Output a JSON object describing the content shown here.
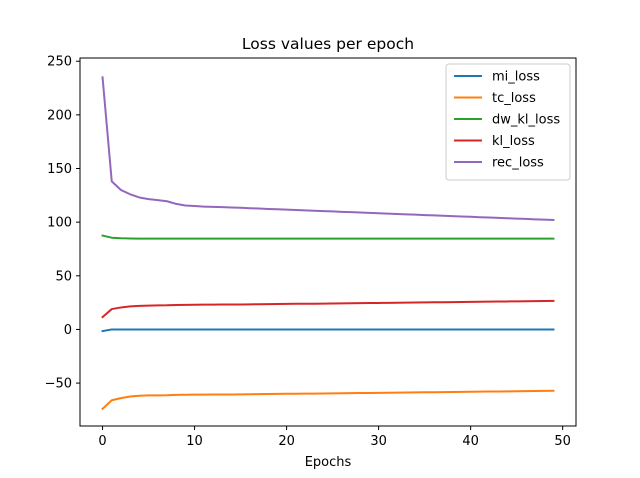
{
  "chart_data": {
    "type": "line",
    "title": "Loss values per epoch",
    "xlabel": "Epochs",
    "ylabel": "",
    "xlim": [
      -2.45,
      51.45
    ],
    "ylim": [
      -90,
      253
    ],
    "xticks": [
      0,
      10,
      20,
      30,
      40,
      50
    ],
    "yticks": [
      -50,
      0,
      50,
      100,
      150,
      200,
      250
    ],
    "ytick_labels": [
      "−50",
      "0",
      "50",
      "100",
      "150",
      "200",
      "250"
    ],
    "grid": false,
    "legend_position": "top-right",
    "x": [
      0,
      1,
      2,
      3,
      4,
      5,
      6,
      7,
      8,
      9,
      10,
      11,
      12,
      13,
      14,
      15,
      16,
      17,
      18,
      19,
      20,
      21,
      22,
      23,
      24,
      25,
      26,
      27,
      28,
      29,
      30,
      31,
      32,
      33,
      34,
      35,
      36,
      37,
      38,
      39,
      40,
      41,
      42,
      43,
      44,
      45,
      46,
      47,
      48,
      49
    ],
    "series": [
      {
        "name": "mi_loss",
        "color": "#1f77b4",
        "values": [
          -1.5,
          0,
          0,
          0,
          0,
          0,
          0,
          0,
          0,
          0,
          0,
          0,
          0,
          0,
          0,
          0,
          0,
          0,
          0,
          0,
          0,
          0,
          0,
          0,
          0,
          0,
          0,
          0,
          0,
          0,
          0,
          0,
          0,
          0,
          0,
          0,
          0,
          0,
          0,
          0,
          0,
          0,
          0,
          0,
          0,
          0,
          0,
          0,
          0,
          0
        ]
      },
      {
        "name": "tc_loss",
        "color": "#ff7f0e",
        "values": [
          -74,
          -66,
          -64,
          -62.5,
          -61.8,
          -61.5,
          -61.4,
          -61.3,
          -61,
          -60.9,
          -60.8,
          -60.8,
          -60.7,
          -60.6,
          -60.6,
          -60.5,
          -60.4,
          -60.3,
          -60.2,
          -60.1,
          -60,
          -59.9,
          -59.8,
          -59.8,
          -59.7,
          -59.6,
          -59.5,
          -59.4,
          -59.3,
          -59.2,
          -59.1,
          -59,
          -58.9,
          -58.8,
          -58.7,
          -58.6,
          -58.5,
          -58.4,
          -58.3,
          -58.2,
          -58.1,
          -58,
          -57.9,
          -57.8,
          -57.7,
          -57.6,
          -57.5,
          -57.4,
          -57.3,
          -57.2
        ]
      },
      {
        "name": "dw_kl_loss",
        "color": "#2ca02c",
        "values": [
          87.5,
          85.5,
          85,
          84.8,
          84.7,
          84.6,
          84.6,
          84.6,
          84.6,
          84.6,
          84.6,
          84.6,
          84.6,
          84.6,
          84.6,
          84.6,
          84.6,
          84.6,
          84.6,
          84.6,
          84.6,
          84.6,
          84.6,
          84.6,
          84.6,
          84.6,
          84.6,
          84.6,
          84.6,
          84.6,
          84.6,
          84.6,
          84.6,
          84.6,
          84.6,
          84.6,
          84.6,
          84.6,
          84.6,
          84.6,
          84.6,
          84.6,
          84.6,
          84.6,
          84.6,
          84.6,
          84.6,
          84.6,
          84.6,
          84.6
        ]
      },
      {
        "name": "kl_loss",
        "color": "#d62728",
        "values": [
          11.5,
          19,
          20.5,
          21.5,
          22,
          22.2,
          22.4,
          22.5,
          22.8,
          22.9,
          23,
          23.1,
          23.1,
          23.2,
          23.3,
          23.3,
          23.4,
          23.5,
          23.6,
          23.7,
          23.8,
          23.9,
          24,
          24,
          24.1,
          24.2,
          24.3,
          24.4,
          24.5,
          24.6,
          24.7,
          24.8,
          24.9,
          25,
          25.1,
          25.2,
          25.3,
          25.4,
          25.5,
          25.6,
          25.7,
          25.8,
          25.9,
          26,
          26.1,
          26.2,
          26.3,
          26.4,
          26.5,
          26.6
        ]
      },
      {
        "name": "rec_loss",
        "color": "#9467bd",
        "values": [
          235,
          138,
          130,
          126,
          123,
          121.5,
          120.5,
          119.5,
          117,
          115.5,
          115,
          114.5,
          114.2,
          114,
          113.7,
          113.4,
          113,
          112.7,
          112.3,
          112,
          111.7,
          111.3,
          111,
          110.6,
          110.3,
          110,
          109.6,
          109.3,
          109,
          108.6,
          108.3,
          108,
          107.6,
          107.3,
          107,
          106.6,
          106.3,
          106,
          105.6,
          105.3,
          105,
          104.6,
          104.3,
          104,
          103.6,
          103.3,
          103,
          102.6,
          102.3,
          102
        ]
      }
    ]
  }
}
